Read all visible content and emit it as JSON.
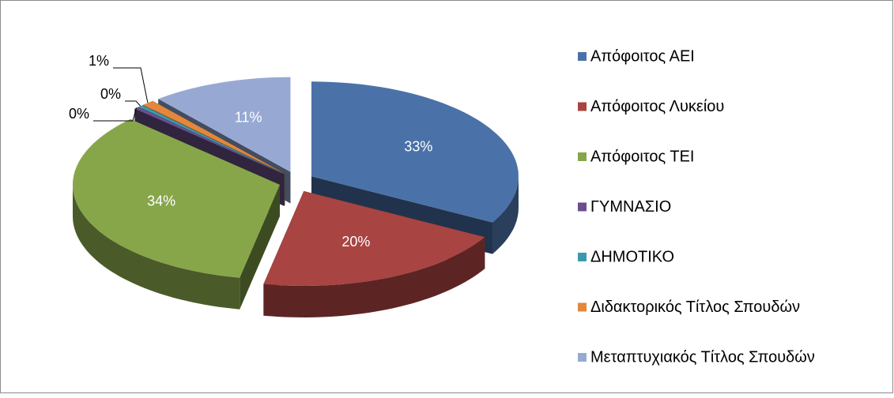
{
  "chart_data": {
    "type": "pie",
    "categories": [
      "Απόφοιτος ΑΕΙ",
      "Απόφοιτος Λυκείου",
      "Απόφοιτος ΤΕΙ",
      "ΓΥΜΝΑΣΙΟ",
      "ΔΗΜΟΤΙΚΟ",
      "Διδακτορικός Τίτλος Σπουδών",
      "Μεταπτυχιακός Τίτλος Σπουδών"
    ],
    "values": [
      33,
      20,
      34,
      0.4,
      0.4,
      1,
      11
    ],
    "value_labels": [
      "33%",
      "20%",
      "34%",
      "0%",
      "0%",
      "1%",
      "11%"
    ],
    "colors": [
      "#4a72a8",
      "#a84442",
      "#87a64a",
      "#6a4f8c",
      "#3c98ae",
      "#e2873c",
      "#97a9d3"
    ],
    "legend": "right"
  }
}
